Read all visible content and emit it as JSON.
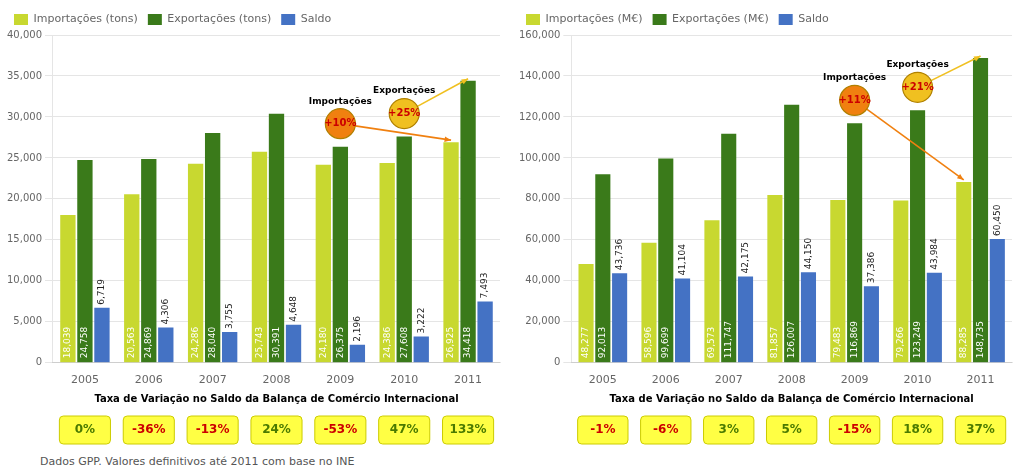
{
  "chart_data": [
    {
      "type": "bar",
      "categories": [
        "2005",
        "2006",
        "2007",
        "2008",
        "2009",
        "2010",
        "2011"
      ],
      "series": [
        {
          "name": "Importações (tons)",
          "color": "#c8d830",
          "values": [
            18039,
            20563,
            24286,
            25743,
            24180,
            24386,
            26925
          ],
          "value_labels": [
            "18,039",
            "20,563",
            "24,286",
            "25,743",
            "24,180",
            "24,386",
            "26,925"
          ]
        },
        {
          "name": "Exportações (tons)",
          "color": "#3a7a1a",
          "values": [
            24758,
            24869,
            28040,
            30391,
            26375,
            27608,
            34418
          ],
          "value_labels": [
            "24,758",
            "24,869",
            "28,040",
            "30,391",
            "26,375",
            "27,608",
            "34,418"
          ]
        },
        {
          "name": "Saldo",
          "color": "#4472c4",
          "values": [
            6719,
            4306,
            3755,
            4648,
            2196,
            3222,
            7493
          ],
          "value_labels": [
            "6,719",
            "4,306",
            "3,755",
            "4,648",
            "2,196",
            "3,222",
            "7,493"
          ]
        }
      ],
      "ylim": [
        0,
        40000
      ],
      "yticks": [
        0,
        {
          "value": 5000,
          "label": "5,000"
        },
        {
          "value": 10000,
          "label": "10,000"
        },
        {
          "value": 15000,
          "label": "15,000"
        },
        {
          "value": 20000,
          "label": "20,000"
        },
        {
          "value": 25000,
          "label": "25,000"
        },
        {
          "value": 30000,
          "label": "30,000"
        },
        {
          "value": 35000,
          "label": "35,000"
        },
        {
          "value": 40000,
          "label": "40,000"
        }
      ],
      "grid": true,
      "legend": "upper left",
      "data_labels": true,
      "annotations": [
        {
          "label": "Exportações",
          "text": "+25%",
          "category": "2011",
          "series": "Exportações (tons)",
          "color": "#f0c020",
          "text_color": "#cc0000"
        },
        {
          "label": "Importações",
          "text": "+10%",
          "category": "2011",
          "series": "Importações (tons)",
          "color": "#f08010",
          "text_color": "#cc0000"
        }
      ],
      "taxa": {
        "title": "Taxa de Variação no Saldo da Balança de Comércio Internacional",
        "color": "#ffff44",
        "values": [
          0,
          -36,
          -13,
          24,
          -53,
          47,
          133
        ],
        "labels": [
          "0%",
          "-36%",
          "-13%",
          "24%",
          "-53%",
          "47%",
          "133%"
        ],
        "colors": [
          "#4a7a00",
          "#cc0000",
          "#cc0000",
          "#4a7a00",
          "#cc0000",
          "#4a7a00",
          "#4a7a00"
        ]
      }
    },
    {
      "type": "bar",
      "categories": [
        "2005",
        "2006",
        "2007",
        "2008",
        "2009",
        "2010",
        "2011"
      ],
      "series": [
        {
          "name": "Importações (M€)",
          "color": "#c8d830",
          "values": [
            48277,
            58596,
            69573,
            81857,
            79483,
            79266,
            88285
          ],
          "value_labels": [
            "48,277",
            "58,596",
            "69,573",
            "81,857",
            "79,483",
            "79,266",
            "88,285"
          ]
        },
        {
          "name": "Exportações (M€)",
          "color": "#3a7a1a",
          "values": [
            92013,
            99699,
            111747,
            126007,
            116869,
            123249,
            148735
          ],
          "value_labels": [
            "92,013",
            "99,699",
            "111,747",
            "126,007",
            "116,869",
            "123,249",
            "148,735"
          ]
        },
        {
          "name": "Saldo",
          "color": "#4472c4",
          "values": [
            43736,
            41104,
            42175,
            44150,
            37386,
            43984,
            60450
          ],
          "value_labels": [
            "43,736",
            "41,104",
            "42,175",
            "44,150",
            "37,386",
            "43,984",
            "60,450"
          ]
        }
      ],
      "ylim": [
        0,
        160000
      ],
      "yticks": [
        0,
        {
          "value": 20000,
          "label": "20,000"
        },
        {
          "value": 40000,
          "label": "40,000"
        },
        {
          "value": 60000,
          "label": "60,000"
        },
        {
          "value": 80000,
          "label": "80,000"
        },
        {
          "value": 100000,
          "label": "100,000"
        },
        {
          "value": 120000,
          "label": "120,000"
        },
        {
          "value": 140000,
          "label": "140,000"
        },
        {
          "value": 160000,
          "label": "160,000"
        }
      ],
      "grid": true,
      "legend": "upper left",
      "data_labels": true,
      "annotations": [
        {
          "label": "Exportações",
          "text": "+21%",
          "category": "2011",
          "series": "Exportações (M€)",
          "color": "#f0c020",
          "text_color": "#cc0000"
        },
        {
          "label": "Importações",
          "text": "+11%",
          "category": "2011",
          "series": "Importações (M€)",
          "color": "#f08010",
          "text_color": "#cc0000"
        }
      ],
      "taxa": {
        "title": "Taxa de Variação no Saldo da Balança de Comércio Internacional",
        "color": "#ffff44",
        "values": [
          -1,
          -6,
          3,
          5,
          -15,
          18,
          37
        ],
        "labels": [
          "-1%",
          "-6%",
          "3%",
          "5%",
          "-15%",
          "18%",
          "37%"
        ],
        "colors": [
          "#cc0000",
          "#cc0000",
          "#4a7a00",
          "#4a7a00",
          "#cc0000",
          "#4a7a00",
          "#4a7a00"
        ]
      }
    }
  ],
  "footer": "Dados GPP. Valores definitivos até 2011  com base no INE"
}
